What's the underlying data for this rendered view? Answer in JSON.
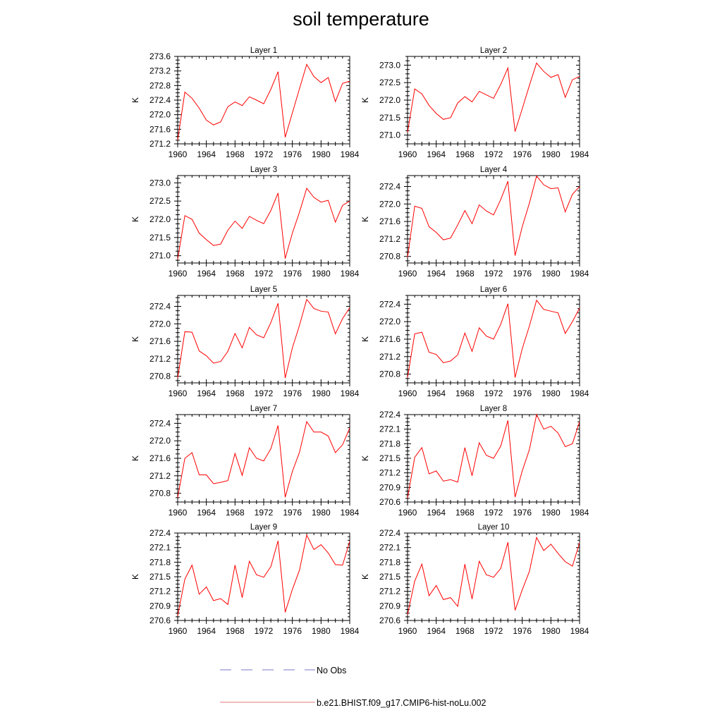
{
  "title": "soil temperature",
  "legend": {
    "items": [
      {
        "label": "No Obs",
        "style": "dashed",
        "color": "#7777cc"
      },
      {
        "label": "b.e21.BHIST.f09_g17.CMIP6-hist-noLu.002",
        "style": "solid",
        "color": "#e87a7a"
      }
    ]
  },
  "chart_data": [
    {
      "type": "line",
      "title": "Layer 1",
      "ylabel": "K",
      "xlim": [
        1960,
        1984
      ],
      "xticks": [
        1960,
        1964,
        1968,
        1972,
        1976,
        1980,
        1984
      ],
      "ylim": [
        271.2,
        273.6
      ],
      "yticks": [
        271.2,
        271.6,
        272.0,
        272.4,
        272.8,
        273.2,
        273.6
      ],
      "ytick_labels": [
        "271.2",
        "271.6",
        "272.0",
        "272.4",
        "272.8",
        "273.2",
        "273.6"
      ],
      "series": [
        {
          "color": "#ff0000",
          "x": [
            1960,
            1961,
            1962,
            1963,
            1964,
            1965,
            1966,
            1967,
            1968,
            1969,
            1970,
            1971,
            1972,
            1973,
            1974,
            1975,
            1976,
            1977,
            1978,
            1979,
            1980,
            1981,
            1982,
            1983,
            1984
          ],
          "values": [
            271.3,
            272.62,
            272.45,
            272.18,
            271.85,
            271.72,
            271.8,
            272.22,
            272.35,
            272.25,
            272.49,
            272.4,
            272.3,
            272.7,
            273.18,
            271.38,
            272.05,
            272.72,
            273.38,
            273.05,
            272.88,
            273.02,
            272.36,
            272.86,
            272.92
          ]
        }
      ]
    },
    {
      "type": "line",
      "title": "Layer 2",
      "ylabel": "K",
      "xlim": [
        1960,
        1984
      ],
      "xticks": [
        1960,
        1964,
        1968,
        1972,
        1976,
        1980,
        1984
      ],
      "ylim": [
        270.75,
        273.25
      ],
      "yticks": [
        271.0,
        271.5,
        272.0,
        272.5,
        273.0
      ],
      "ytick_labels": [
        "271.0",
        "271.5",
        "272.0",
        "272.5",
        "273.0"
      ],
      "series": [
        {
          "color": "#ff0000",
          "x": [
            1960,
            1961,
            1962,
            1963,
            1964,
            1965,
            1966,
            1967,
            1968,
            1969,
            1970,
            1971,
            1972,
            1973,
            1974,
            1975,
            1976,
            1977,
            1978,
            1979,
            1980,
            1981,
            1982,
            1983,
            1984
          ],
          "values": [
            271.08,
            272.32,
            272.18,
            271.85,
            271.62,
            271.45,
            271.5,
            271.92,
            272.1,
            271.95,
            272.25,
            272.15,
            272.05,
            272.45,
            272.92,
            271.1,
            271.75,
            272.42,
            273.06,
            272.82,
            272.65,
            272.73,
            272.08,
            272.58,
            272.68
          ]
        }
      ]
    },
    {
      "type": "line",
      "title": "Layer 3",
      "ylabel": "K",
      "xlim": [
        1960,
        1984
      ],
      "xticks": [
        1960,
        1964,
        1968,
        1972,
        1976,
        1980,
        1984
      ],
      "ylim": [
        270.8,
        273.2
      ],
      "yticks": [
        271.0,
        271.5,
        272.0,
        272.5,
        273.0
      ],
      "ytick_labels": [
        "271.0",
        "271.5",
        "272.0",
        "272.5",
        "273.0"
      ],
      "series": [
        {
          "color": "#ff0000",
          "x": [
            1960,
            1961,
            1962,
            1963,
            1964,
            1965,
            1966,
            1967,
            1968,
            1969,
            1970,
            1971,
            1972,
            1973,
            1974,
            1975,
            1976,
            1977,
            1978,
            1979,
            1980,
            1981,
            1982,
            1983,
            1984
          ],
          "values": [
            270.9,
            272.1,
            272.0,
            271.62,
            271.44,
            271.28,
            271.32,
            271.7,
            271.95,
            271.75,
            272.08,
            271.97,
            271.88,
            272.24,
            272.72,
            270.92,
            271.62,
            272.2,
            272.85,
            272.6,
            272.47,
            272.52,
            271.92,
            272.38,
            272.5
          ]
        }
      ]
    },
    {
      "type": "line",
      "title": "Layer 4",
      "ylabel": "K",
      "xlim": [
        1960,
        1984
      ],
      "xticks": [
        1960,
        1964,
        1968,
        1972,
        1976,
        1980,
        1984
      ],
      "ylim": [
        270.65,
        272.65
      ],
      "yticks": [
        270.8,
        271.2,
        271.6,
        272.0,
        272.4
      ],
      "ytick_labels": [
        "270.8",
        "271.2",
        "271.6",
        "272.0",
        "272.4"
      ],
      "series": [
        {
          "color": "#ff0000",
          "x": [
            1960,
            1961,
            1962,
            1963,
            1964,
            1965,
            1966,
            1967,
            1968,
            1969,
            1970,
            1971,
            1972,
            1973,
            1974,
            1975,
            1976,
            1977,
            1978,
            1979,
            1980,
            1981,
            1982,
            1983,
            1984
          ],
          "values": [
            270.78,
            271.95,
            271.9,
            271.48,
            271.35,
            271.18,
            271.22,
            271.52,
            271.85,
            271.55,
            271.98,
            271.84,
            271.75,
            272.1,
            272.52,
            270.82,
            271.48,
            272.02,
            272.64,
            272.44,
            272.35,
            272.37,
            271.82,
            272.22,
            272.4
          ]
        }
      ]
    },
    {
      "type": "line",
      "title": "Layer 5",
      "ylabel": "K",
      "xlim": [
        1960,
        1984
      ],
      "xticks": [
        1960,
        1964,
        1968,
        1972,
        1976,
        1980,
        1984
      ],
      "ylim": [
        270.65,
        272.65
      ],
      "yticks": [
        270.8,
        271.2,
        271.6,
        272.0,
        272.4
      ],
      "ytick_labels": [
        "270.8",
        "271.2",
        "271.6",
        "272.0",
        "272.4"
      ],
      "series": [
        {
          "color": "#ff0000",
          "x": [
            1960,
            1961,
            1962,
            1963,
            1964,
            1965,
            1966,
            1967,
            1968,
            1969,
            1970,
            1971,
            1972,
            1973,
            1974,
            1975,
            1976,
            1977,
            1978,
            1979,
            1980,
            1981,
            1982,
            1983,
            1984
          ],
          "values": [
            270.76,
            271.82,
            271.81,
            271.38,
            271.27,
            271.1,
            271.14,
            271.37,
            271.78,
            271.45,
            271.92,
            271.75,
            271.68,
            272.03,
            272.47,
            270.76,
            271.45,
            271.97,
            272.56,
            272.35,
            272.29,
            272.27,
            271.77,
            272.12,
            272.37
          ]
        }
      ]
    },
    {
      "type": "line",
      "title": "Layer 6",
      "ylabel": "K",
      "xlim": [
        1960,
        1984
      ],
      "xticks": [
        1960,
        1964,
        1968,
        1972,
        1976,
        1980,
        1984
      ],
      "ylim": [
        270.6,
        272.6
      ],
      "yticks": [
        270.8,
        271.2,
        271.6,
        272.0,
        272.4
      ],
      "ytick_labels": [
        "270.8",
        "271.2",
        "271.6",
        "272.0",
        "272.4"
      ],
      "series": [
        {
          "color": "#ff0000",
          "x": [
            1960,
            1961,
            1962,
            1963,
            1964,
            1965,
            1966,
            1967,
            1968,
            1969,
            1970,
            1971,
            1972,
            1973,
            1974,
            1975,
            1976,
            1977,
            1978,
            1979,
            1980,
            1981,
            1982,
            1983,
            1984
          ],
          "values": [
            270.72,
            271.72,
            271.76,
            271.3,
            271.25,
            271.06,
            271.1,
            271.24,
            271.74,
            271.32,
            271.86,
            271.67,
            271.6,
            271.94,
            272.41,
            270.72,
            271.38,
            271.9,
            272.49,
            272.28,
            272.24,
            272.2,
            271.73,
            272.0,
            272.31
          ]
        }
      ]
    },
    {
      "type": "line",
      "title": "Layer 7",
      "ylabel": "K",
      "xlim": [
        1960,
        1984
      ],
      "xticks": [
        1960,
        1964,
        1968,
        1972,
        1976,
        1980,
        1984
      ],
      "ylim": [
        270.6,
        272.6
      ],
      "yticks": [
        270.8,
        271.2,
        271.6,
        272.0,
        272.4
      ],
      "ytick_labels": [
        "270.8",
        "271.2",
        "271.6",
        "272.0",
        "272.4"
      ],
      "series": [
        {
          "color": "#ff0000",
          "x": [
            1960,
            1961,
            1962,
            1963,
            1964,
            1965,
            1966,
            1967,
            1968,
            1969,
            1970,
            1971,
            1972,
            1973,
            1974,
            1975,
            1976,
            1977,
            1978,
            1979,
            1980,
            1981,
            1982,
            1983,
            1984
          ],
          "values": [
            270.7,
            271.6,
            271.73,
            271.22,
            271.22,
            271.02,
            271.05,
            271.09,
            271.71,
            271.21,
            271.84,
            271.6,
            271.54,
            271.82,
            272.35,
            270.71,
            271.3,
            271.74,
            272.44,
            272.2,
            272.2,
            272.11,
            271.73,
            271.91,
            272.29
          ]
        }
      ]
    },
    {
      "type": "line",
      "title": "Layer 8",
      "ylabel": "K",
      "xlim": [
        1960,
        1984
      ],
      "xticks": [
        1960,
        1964,
        1968,
        1972,
        1976,
        1980,
        1984
      ],
      "ylim": [
        270.6,
        272.4
      ],
      "yticks": [
        270.6,
        270.9,
        271.2,
        271.5,
        271.8,
        272.1,
        272.4
      ],
      "ytick_labels": [
        "270.6",
        "270.9",
        "271.2",
        "271.5",
        "271.8",
        "272.1",
        "272.4"
      ],
      "series": [
        {
          "color": "#ff0000",
          "x": [
            1960,
            1961,
            1962,
            1963,
            1964,
            1965,
            1966,
            1967,
            1968,
            1969,
            1970,
            1971,
            1972,
            1973,
            1974,
            1975,
            1976,
            1977,
            1978,
            1979,
            1980,
            1981,
            1982,
            1983,
            1984
          ],
          "values": [
            270.68,
            271.52,
            271.72,
            271.18,
            271.24,
            271.03,
            271.06,
            271.01,
            271.72,
            271.14,
            271.82,
            271.56,
            271.5,
            271.75,
            272.28,
            270.7,
            271.24,
            271.68,
            272.4,
            272.1,
            272.16,
            272.02,
            271.74,
            271.8,
            272.25
          ]
        }
      ]
    },
    {
      "type": "line",
      "title": "Layer 9",
      "ylabel": "K",
      "xlim": [
        1960,
        1984
      ],
      "xticks": [
        1960,
        1964,
        1968,
        1972,
        1976,
        1980,
        1984
      ],
      "ylim": [
        270.6,
        272.4
      ],
      "yticks": [
        270.6,
        270.9,
        271.2,
        271.5,
        271.8,
        272.1,
        272.4
      ],
      "ytick_labels": [
        "270.6",
        "270.9",
        "271.2",
        "271.5",
        "271.8",
        "272.1",
        "272.4"
      ],
      "series": [
        {
          "color": "#ff0000",
          "x": [
            1960,
            1961,
            1962,
            1963,
            1964,
            1965,
            1966,
            1967,
            1968,
            1969,
            1970,
            1971,
            1972,
            1973,
            1974,
            1975,
            1976,
            1977,
            1978,
            1979,
            1980,
            1981,
            1982,
            1983,
            1984
          ],
          "values": [
            270.7,
            271.45,
            271.74,
            271.14,
            271.29,
            271.01,
            271.05,
            270.93,
            271.74,
            271.07,
            271.82,
            271.54,
            271.49,
            271.71,
            272.24,
            270.77,
            271.24,
            271.64,
            272.36,
            272.06,
            272.16,
            271.99,
            271.75,
            271.74,
            272.23
          ]
        }
      ]
    },
    {
      "type": "line",
      "title": "Layer 10",
      "ylabel": "K",
      "xlim": [
        1960,
        1984
      ],
      "xticks": [
        1960,
        1964,
        1968,
        1972,
        1976,
        1980,
        1984
      ],
      "ylim": [
        270.6,
        272.4
      ],
      "yticks": [
        270.6,
        270.9,
        271.2,
        271.5,
        271.8,
        272.1,
        272.4
      ],
      "ytick_labels": [
        "270.6",
        "270.9",
        "271.2",
        "271.5",
        "271.8",
        "272.1",
        "272.4"
      ],
      "series": [
        {
          "color": "#ff0000",
          "x": [
            1960,
            1961,
            1962,
            1963,
            1964,
            1965,
            1966,
            1967,
            1968,
            1969,
            1970,
            1971,
            1972,
            1973,
            1974,
            1975,
            1976,
            1977,
            1978,
            1979,
            1980,
            1981,
            1982,
            1983,
            1984
          ],
          "values": [
            270.72,
            271.41,
            271.76,
            271.11,
            271.32,
            271.03,
            271.07,
            270.89,
            271.76,
            271.04,
            271.82,
            271.54,
            271.49,
            271.67,
            272.21,
            270.81,
            271.23,
            271.61,
            272.31,
            272.04,
            272.17,
            271.98,
            271.81,
            271.72,
            272.2
          ]
        }
      ]
    }
  ]
}
